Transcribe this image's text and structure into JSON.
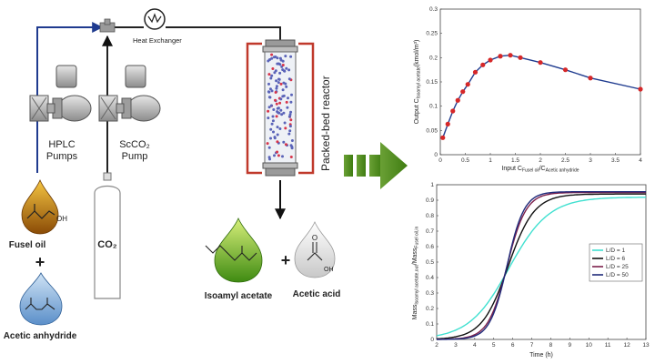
{
  "process": {
    "hplc_label_1": "HPLC",
    "hplc_label_2": "Pumps",
    "scco2_label_1": "ScCO₂",
    "scco2_label_2": "Pump",
    "heat_exchanger_label": "Heat Exchanger",
    "reactor_label": "Packed-bed reactor",
    "co2_label": "CO₂",
    "fusel_oil_label": "Fusel oil",
    "fusel_oh": "OH",
    "plus_1": "+",
    "acetic_anhydride_label": "Acetic anhydride",
    "isoamyl_acetate_label": "Isoamyl acetate",
    "plus_2": "+",
    "acetic_acid_label": "Acetic acid",
    "acetic_acid_oh": "OH",
    "acetic_acid_o": "O",
    "colors": {
      "line_blue": "#1f3b8f",
      "arrow_green": "#4f8a1e",
      "reactor_red": "#c0392b"
    }
  },
  "chart_data": [
    {
      "type": "line",
      "title": "",
      "xlabel_main": "Input C",
      "xlabel_sub1": "Fusel oil",
      "xlabel_mid": "/C",
      "xlabel_sub2": "Acetic anhydride",
      "ylabel_main": "Output C",
      "ylabel_sub": "Isoamyl acetate",
      "ylabel_unit": "(kmol/m³)",
      "xlim": [
        0,
        4
      ],
      "ylim": [
        0,
        0.3
      ],
      "xticks": [
        "0",
        "0.5",
        "1",
        "1.5",
        "2",
        "2.5",
        "3",
        "3.5",
        "4"
      ],
      "yticks": [
        "0",
        "0.05",
        "0.1",
        "0.15",
        "0.2",
        "0.25",
        "0.3"
      ],
      "grid": false,
      "series": [
        {
          "line_color": "#1f3b8f",
          "marker_color": "#d62728",
          "x": [
            0.05,
            0.15,
            0.25,
            0.35,
            0.45,
            0.55,
            0.7,
            0.85,
            1.0,
            1.2,
            1.4,
            1.6,
            2.0,
            2.5,
            3.0,
            4.0
          ],
          "y": [
            0.035,
            0.063,
            0.09,
            0.112,
            0.13,
            0.145,
            0.17,
            0.185,
            0.195,
            0.203,
            0.205,
            0.2,
            0.19,
            0.175,
            0.158,
            0.135
          ]
        }
      ]
    },
    {
      "type": "line",
      "title": "",
      "xlabel": "Time (h)",
      "ylabel_main": "Mass",
      "ylabel_sub1": "Isoamyl acetate,out",
      "ylabel_mid": "/Mass",
      "ylabel_sub2": "Fusel oil,in",
      "xlim": [
        2,
        13
      ],
      "ylim": [
        0,
        1
      ],
      "xticks": [
        "2",
        "3",
        "4",
        "5",
        "6",
        "7",
        "8",
        "9",
        "10",
        "11",
        "12",
        "13"
      ],
      "yticks": [
        "0",
        "0.1",
        "0.2",
        "0.3",
        "0.4",
        "0.5",
        "0.6",
        "0.7",
        "0.8",
        "0.9",
        "1"
      ],
      "grid": false,
      "legend_position": "center-right",
      "series": [
        {
          "name": "L/D = 1",
          "color": "#40e0d0",
          "t50": 5.8,
          "k": 0.95,
          "max": 0.92
        },
        {
          "name": "L/D = 6",
          "color": "#111111",
          "t50": 5.75,
          "k": 1.45,
          "max": 0.94
        },
        {
          "name": "L/D = 25",
          "color": "#7b1f4b",
          "t50": 5.7,
          "k": 2.0,
          "max": 0.95
        },
        {
          "name": "L/D = 50",
          "color": "#1f2a7a",
          "t50": 5.7,
          "k": 2.2,
          "max": 0.955
        }
      ]
    }
  ]
}
